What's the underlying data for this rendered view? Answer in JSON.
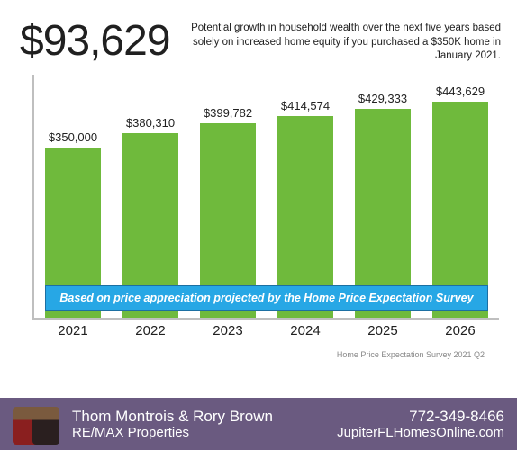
{
  "header": {
    "headline": "$93,629",
    "subhead": "Potential growth in household wealth over the next five years based solely on increased home equity if you purchased a $350K home in January 2021."
  },
  "chart": {
    "type": "bar",
    "categories": [
      "2021",
      "2022",
      "2023",
      "2024",
      "2025",
      "2026"
    ],
    "values": [
      350000,
      380310,
      399782,
      414574,
      429333,
      443629
    ],
    "value_labels": [
      "$350,000",
      "$380,310",
      "$399,782",
      "$414,574",
      "$429,333",
      "$443,629"
    ],
    "bar_color": "#6fba3c",
    "axis_color": "#bfbfbf",
    "ylim": [
      0,
      500000
    ],
    "label_fontsize": 13,
    "xlabel_fontsize": 15,
    "banner_text": "Based on price appreciation projected by the Home Price Expectation Survey",
    "banner_bg": "#27a7e5",
    "banner_border": "#1c6fa2"
  },
  "source": "Home Price Expectation Survey 2021 Q2",
  "footer": {
    "bg_color": "#6a5a80",
    "agent_name": "Thom Montrois & Rory Brown",
    "agent_company": "RE/MAX Properties",
    "phone": "772-349-8466",
    "website": "JupiterFLHomesOnline.com"
  }
}
